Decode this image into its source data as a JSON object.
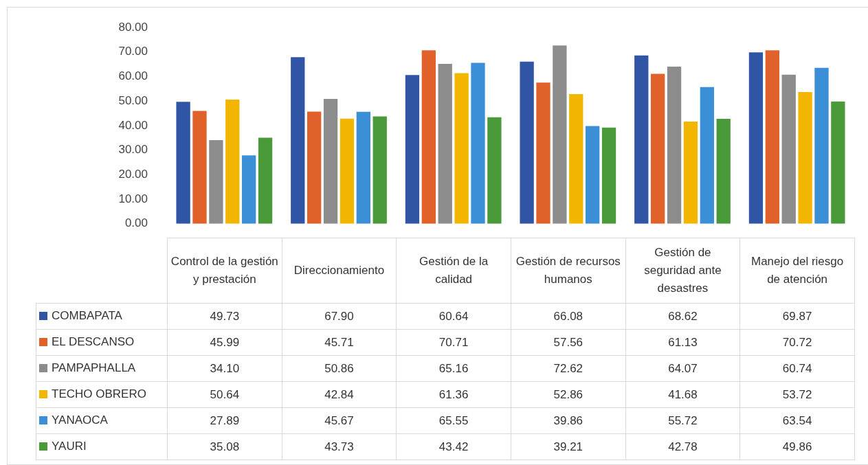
{
  "chart_data": {
    "type": "bar",
    "categories": [
      "Control de la gestión y prestación",
      "Direccionamiento",
      "Gestión de la calidad",
      "Gestión de recursos humanos",
      "Gestión de seguridad ante desastres",
      "Manejo del riesgo de atención"
    ],
    "series": [
      {
        "name": "COMBAPATA",
        "color": "#2f55a4",
        "values": [
          49.73,
          67.9,
          60.64,
          66.08,
          68.62,
          69.87
        ],
        "value_labels": [
          "49.73",
          "67.90",
          "60.64",
          "66.08",
          "68.62",
          "69.87"
        ]
      },
      {
        "name": "EL DESCANSO",
        "color": "#e0622a",
        "values": [
          45.99,
          45.71,
          70.71,
          57.56,
          61.13,
          70.72
        ],
        "value_labels": [
          "45.99",
          "45.71",
          "70.71",
          "57.56",
          "61.13",
          "70.72"
        ]
      },
      {
        "name": "PAMPAPHALLA",
        "color": "#8c8c8c",
        "values": [
          34.1,
          50.86,
          65.16,
          72.62,
          64.07,
          60.74
        ],
        "value_labels": [
          "34.10",
          "50.86",
          "65.16",
          "72.62",
          "64.07",
          "60.74"
        ]
      },
      {
        "name": "TECHO OBRERO",
        "color": "#f2b600",
        "values": [
          50.64,
          42.84,
          61.36,
          52.86,
          41.68,
          53.72
        ],
        "value_labels": [
          "50.64",
          "42.84",
          "61.36",
          "52.86",
          "41.68",
          "53.72"
        ]
      },
      {
        "name": "YANAOCA",
        "color": "#3b8fd6",
        "values": [
          27.89,
          45.67,
          65.55,
          39.86,
          55.72,
          63.54
        ],
        "value_labels": [
          "27.89",
          "45.67",
          "65.55",
          "39.86",
          "55.72",
          "63.54"
        ]
      },
      {
        "name": "YAURI",
        "color": "#4a9a3a",
        "values": [
          35.08,
          43.73,
          43.42,
          39.21,
          42.78,
          49.86
        ],
        "value_labels": [
          "35.08",
          "43.73",
          "43.42",
          "39.21",
          "42.78",
          "49.86"
        ]
      }
    ],
    "ylim": [
      0,
      80
    ],
    "yticks": [
      {
        "value": 0,
        "label": "0.00"
      },
      {
        "value": 10,
        "label": "10.00"
      },
      {
        "value": 20,
        "label": "20.00"
      },
      {
        "value": 30,
        "label": "30.00"
      },
      {
        "value": 40,
        "label": "40.00"
      },
      {
        "value": 50,
        "label": "50.00"
      },
      {
        "value": 60,
        "label": "60.00"
      },
      {
        "value": 70,
        "label": "70.00"
      },
      {
        "value": 80,
        "label": "80.00"
      }
    ],
    "legend": "bottom"
  }
}
